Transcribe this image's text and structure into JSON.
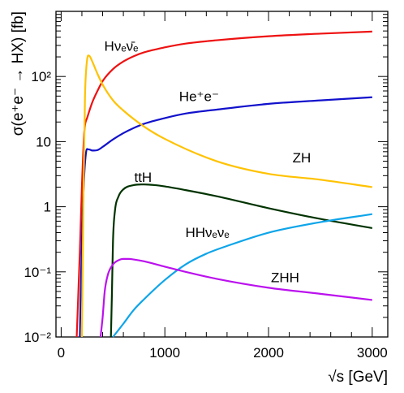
{
  "chart_data": {
    "type": "line",
    "title": "",
    "xlabel": "√s [GeV]",
    "ylabel": "σ(e⁺e⁻ → HX) [fb]",
    "y_scale": "log",
    "xlim": [
      -50,
      3150
    ],
    "ylim": [
      0.01,
      1000
    ],
    "grid": false,
    "x_ticks": [
      0,
      1000,
      2000,
      3000
    ],
    "x_tick_labels": [
      "0",
      "1000",
      "2000",
      "3000"
    ],
    "y_ticks": [
      0.01,
      0.1,
      1,
      10,
      100
    ],
    "y_tick_labels": [
      "10⁻²",
      "10⁻¹",
      "1",
      "10",
      "10²"
    ],
    "series": [
      {
        "name": "Hνₑν̄ₑ",
        "color": "#ee1111",
        "x": [
          150,
          180,
          200,
          220,
          230,
          250,
          300,
          350,
          400,
          500,
          600,
          700,
          800,
          1000,
          1200,
          1500,
          2000,
          2500,
          3000
        ],
        "y": [
          0.01,
          0.2,
          2,
          12,
          18,
          23,
          40,
          60,
          85,
          130,
          170,
          205,
          235,
          280,
          320,
          360,
          415,
          455,
          490
        ]
      },
      {
        "name": "He⁺e⁻",
        "color": "#1111cc",
        "x": [
          180,
          200,
          220,
          240,
          260,
          280,
          300,
          350,
          400,
          500,
          600,
          700,
          800,
          1000,
          1200,
          1500,
          2000,
          2500,
          3000
        ],
        "y": [
          0.01,
          0.3,
          2.5,
          6.8,
          7.6,
          7.5,
          7.3,
          7.4,
          8.3,
          10.8,
          13.5,
          16.2,
          18.8,
          23,
          27,
          31,
          38,
          43,
          48
        ]
      },
      {
        "name": "ZH",
        "color": "#ffc200",
        "x": [
          200,
          215,
          230,
          240,
          250,
          260,
          275,
          300,
          350,
          400,
          500,
          600,
          800,
          1000,
          1500,
          2000,
          2500,
          3000
        ],
        "y": [
          0.01,
          1.5,
          50,
          120,
          180,
          210,
          205,
          170,
          110,
          75,
          43,
          30,
          17,
          11,
          5,
          3.2,
          2.6,
          2.0
        ]
      },
      {
        "name": "ttH",
        "color": "#003300",
        "x": [
          480,
          490,
          500,
          520,
          550,
          600,
          700,
          800,
          900,
          1000,
          1200,
          1500,
          2000,
          2500,
          3000
        ],
        "y": [
          0.01,
          0.05,
          0.3,
          0.9,
          1.4,
          1.85,
          2.15,
          2.2,
          2.15,
          2.05,
          1.8,
          1.45,
          0.95,
          0.65,
          0.47
        ]
      },
      {
        "name": "HHνₑνₑ",
        "color": "#0ea5e9",
        "x": [
          500,
          600,
          700,
          800,
          1000,
          1200,
          1400,
          1600,
          2000,
          2500,
          3000
        ],
        "y": [
          0.01,
          0.016,
          0.026,
          0.038,
          0.075,
          0.13,
          0.19,
          0.25,
          0.4,
          0.58,
          0.77
        ]
      },
      {
        "name": "ZHH",
        "color": "#bb11ee",
        "x": [
          380,
          400,
          420,
          450,
          500,
          550,
          600,
          650,
          700,
          800,
          1000,
          1200,
          1500,
          2000,
          2500,
          3000
        ],
        "y": [
          0.01,
          0.02,
          0.05,
          0.09,
          0.13,
          0.15,
          0.158,
          0.158,
          0.155,
          0.145,
          0.12,
          0.1,
          0.078,
          0.057,
          0.046,
          0.037
        ]
      }
    ],
    "curve_labels": [
      {
        "series": "Hνₑν̄ₑ",
        "text": "Hνₑν̄ₑ",
        "at": [
          580,
          250
        ]
      },
      {
        "series": "He⁺e⁻",
        "text": "He⁺e⁻",
        "at": [
          1330,
          42
        ]
      },
      {
        "series": "ZH",
        "text": "ZH",
        "at": [
          2320,
          4.8
        ]
      },
      {
        "series": "ttH",
        "text": "ttH",
        "at": [
          790,
          2.4
        ]
      },
      {
        "series": "HHνₑνₑ",
        "text": "HHνₑνₑ",
        "at": [
          1410,
          0.34
        ]
      },
      {
        "series": "ZHH",
        "text": "ZHH",
        "at": [
          2160,
          0.069
        ]
      }
    ]
  }
}
